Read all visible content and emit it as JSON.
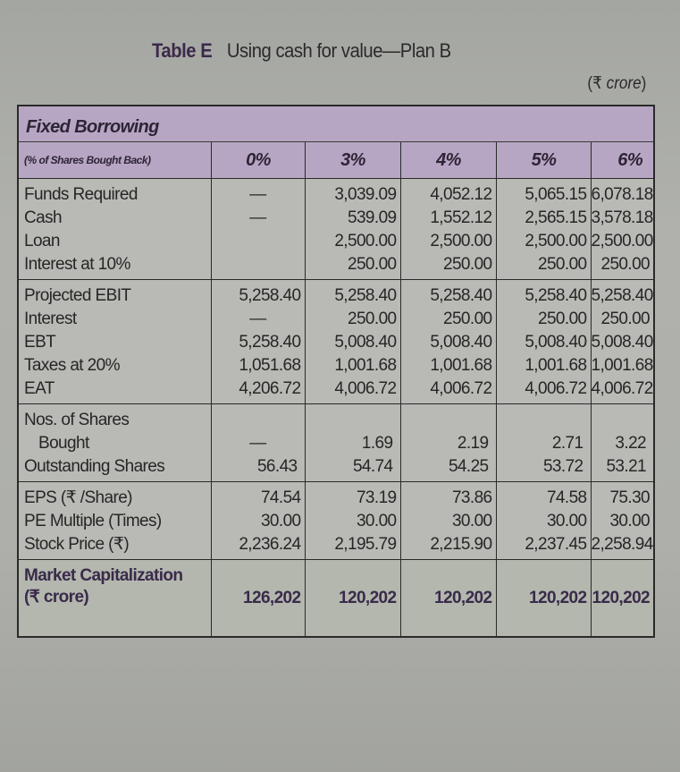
{
  "title": {
    "label": "Table E",
    "text": "Using cash for value—Plan B"
  },
  "unit": {
    "symbol": "(₹ ",
    "word": "crore",
    "close": ")"
  },
  "table": {
    "section_title": "Fixed Borrowing",
    "column_header_label": "(% of Shares Bought Back)",
    "columns": [
      "0%",
      "3%",
      "4%",
      "5%",
      "6%"
    ],
    "groups": [
      {
        "rows": [
          {
            "label": "Funds Required",
            "values": [
              "—",
              "3,039.09",
              "4,052.12",
              "5,065.15",
              "6,078.18"
            ]
          },
          {
            "label": "Cash",
            "values": [
              "—",
              "539.09",
              "1,552.12",
              "2,565.15",
              "3,578.18"
            ]
          },
          {
            "label": "Loan",
            "values": [
              "",
              "2,500.00",
              "2,500.00",
              "2,500.00",
              "2,500.00"
            ]
          },
          {
            "label": "Interest at 10%",
            "values": [
              "",
              "250.00",
              "250.00",
              "250.00",
              "250.00"
            ]
          }
        ]
      },
      {
        "rows": [
          {
            "label": "Projected EBIT",
            "values": [
              "5,258.40",
              "5,258.40",
              "5,258.40",
              "5,258.40",
              "5,258.40"
            ]
          },
          {
            "label": "Interest",
            "values": [
              "—",
              "250.00",
              "250.00",
              "250.00",
              "250.00"
            ]
          },
          {
            "label": "EBT",
            "values": [
              "5,258.40",
              "5,008.40",
              "5,008.40",
              "5,008.40",
              "5,008.40"
            ]
          },
          {
            "label": "Taxes at 20%",
            "values": [
              "1,051.68",
              "1,001.68",
              "1,001.68",
              "1,001.68",
              "1,001.68"
            ]
          },
          {
            "label": "EAT",
            "values": [
              "4,206.72",
              "4,006.72",
              "4,006.72",
              "4,006.72",
              "4,006.72"
            ]
          }
        ]
      },
      {
        "rows": [
          {
            "label": "Nos. of Shares",
            "values": [
              "",
              "",
              "",
              "",
              ""
            ]
          },
          {
            "label": "Bought",
            "values": [
              "—",
              "1.69",
              "2.19",
              "2.71",
              "3.22"
            ]
          },
          {
            "label": "Outstanding Shares",
            "values": [
              "56.43",
              "54.74",
              "54.25",
              "53.72",
              "53.21"
            ]
          }
        ]
      },
      {
        "rows": [
          {
            "label": "EPS (₹ /Share)",
            "values": [
              "74.54",
              "73.19",
              "73.86",
              "74.58",
              "75.30"
            ]
          },
          {
            "label": "PE Multiple (Times)",
            "values": [
              "30.00",
              "30.00",
              "30.00",
              "30.00",
              "30.00"
            ]
          },
          {
            "label": "Stock Price (₹)",
            "values": [
              "2,236.24",
              "2,195.79",
              "2,215.90",
              "2,237.45",
              "2,258.94"
            ]
          }
        ]
      }
    ],
    "market_cap": {
      "label_line1": "Market Capitalization",
      "label_line2": "(₹ crore)",
      "values": [
        "126,202",
        "120,202",
        "120,202",
        "120,202",
        "120,202"
      ]
    }
  },
  "colors": {
    "header_band": "#b7a6c3",
    "body_cells": "#b9bab5",
    "page_background": "#a9aaa6",
    "emphasis_text": "#3a2a4a"
  }
}
